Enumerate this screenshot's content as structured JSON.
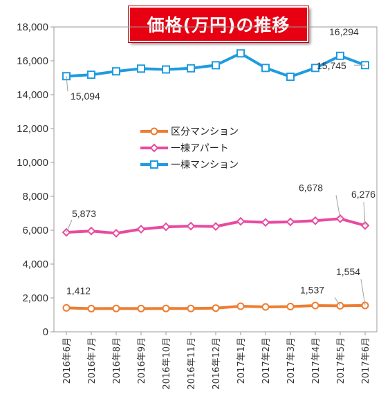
{
  "title": "価格(万円)の推移",
  "chart_data": {
    "type": "line",
    "title": "価格(万円)の推移",
    "categories": [
      "2016年6月",
      "2016年7月",
      "2016年8月",
      "2016年9月",
      "2016年10月",
      "2016年11月",
      "2016年12月",
      "2017年1月",
      "2017年2月",
      "2017年3月",
      "2017年4月",
      "2017年5月",
      "2017年6月"
    ],
    "ylim": [
      0,
      18000
    ],
    "yticks": [
      0,
      2000,
      4000,
      6000,
      8000,
      10000,
      12000,
      14000,
      16000,
      18000
    ],
    "ytick_labels": [
      "0",
      "2,000",
      "4,000",
      "6,000",
      "8,000",
      "10,000",
      "12,000",
      "14,000",
      "16,000",
      "18,000"
    ],
    "grid": false,
    "legend_position": "center",
    "series": [
      {
        "name": "区分マンション",
        "color": "#ed7d31",
        "marker": "circle",
        "values": [
          1412,
          1370,
          1380,
          1375,
          1380,
          1380,
          1400,
          1510,
          1470,
          1490,
          1550,
          1537,
          1554
        ],
        "data_labels": [
          {
            "index": 0,
            "text": "1,412"
          },
          {
            "index": 11,
            "text": "1,537"
          },
          {
            "index": 12,
            "text": "1,554"
          }
        ]
      },
      {
        "name": "一棟アパート",
        "color": "#e84aa0",
        "marker": "diamond",
        "values": [
          5873,
          5950,
          5820,
          6060,
          6200,
          6240,
          6220,
          6520,
          6460,
          6490,
          6560,
          6678,
          6276
        ],
        "data_labels": [
          {
            "index": 0,
            "text": "5,873"
          },
          {
            "index": 11,
            "text": "6,678"
          },
          {
            "index": 12,
            "text": "6,276"
          }
        ]
      },
      {
        "name": "一棟マンション",
        "color": "#1f9be0",
        "marker": "square",
        "values": [
          15094,
          15180,
          15380,
          15540,
          15490,
          15560,
          15740,
          16440,
          15580,
          15060,
          15580,
          16294,
          15745
        ],
        "data_labels": [
          {
            "index": 0,
            "text": "15,094"
          },
          {
            "index": 11,
            "text": "16,294"
          },
          {
            "index": 12,
            "text": "15,745"
          }
        ]
      }
    ]
  }
}
